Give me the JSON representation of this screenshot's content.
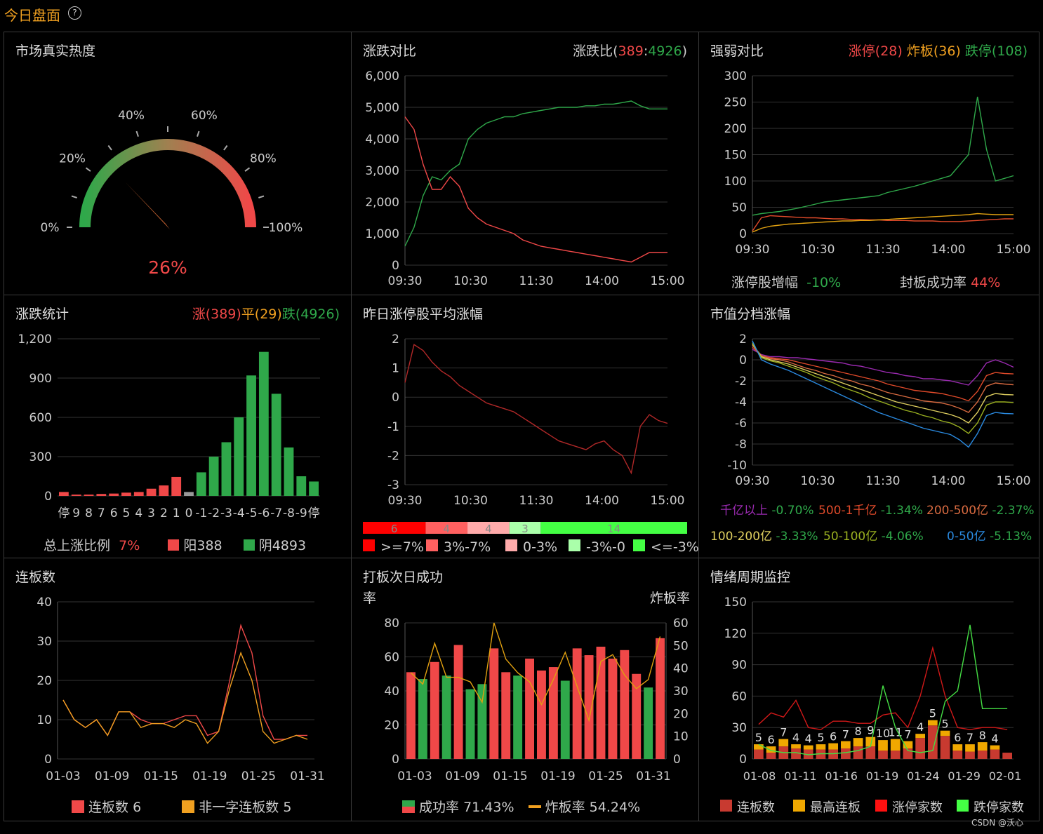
{
  "header": {
    "title": "今日盘面",
    "help_icon": "?"
  },
  "heat": {
    "title": "市场真实热度",
    "value": 26,
    "value_label": "26%",
    "ticks": [
      "0%",
      "20%",
      "40%",
      "60%",
      "80%",
      "100%"
    ]
  },
  "updown": {
    "title": "涨跌对比",
    "ratio_prefix": "涨跌比(",
    "ratio_up": "389",
    "ratio_sep": ":",
    "ratio_down": "4926",
    "ratio_suffix": ")",
    "chart_data": {
      "type": "line",
      "x_ticks": [
        "09:30",
        "10:30",
        "11:30",
        "14:00",
        "15:00"
      ],
      "y_ticks": [
        "6,000",
        "5,000",
        "4,000",
        "3,000",
        "2,000",
        "1,000",
        "0"
      ],
      "ylim": [
        0,
        6000
      ],
      "series": [
        {
          "color": "#2fa84a",
          "values": [
            600,
            1200,
            2200,
            2800,
            2700,
            3000,
            3200,
            4000,
            4300,
            4500,
            4600,
            4700,
            4700,
            4800,
            4850,
            4900,
            4950,
            5000,
            5000,
            5000,
            5050,
            5050,
            5100,
            5100,
            5150,
            5200,
            5050,
            4950,
            4950,
            4950
          ]
        },
        {
          "color": "#f04848",
          "values": [
            4700,
            4300,
            3200,
            2400,
            2400,
            2800,
            2500,
            1800,
            1500,
            1300,
            1200,
            1100,
            1000,
            800,
            700,
            600,
            550,
            500,
            450,
            400,
            350,
            300,
            250,
            200,
            150,
            100,
            250,
            400,
            400,
            400
          ]
        }
      ]
    }
  },
  "strength": {
    "title": "强弱对比",
    "r1": "涨停(28)",
    "r2": "炸板(36)",
    "r3": "跌停(108)",
    "chart_data": {
      "type": "line",
      "x_ticks": [
        "09:30",
        "10:30",
        "11:30",
        "14:00",
        "15:00"
      ],
      "y_ticks": [
        "300",
        "250",
        "200",
        "150",
        "100",
        "50",
        "0"
      ],
      "ylim": [
        0,
        300
      ],
      "series": [
        {
          "color": "#2fa84a",
          "values": [
            35,
            38,
            40,
            42,
            45,
            48,
            52,
            56,
            60,
            62,
            64,
            66,
            68,
            70,
            72,
            78,
            82,
            86,
            90,
            95,
            100,
            105,
            110,
            130,
            150,
            260,
            160,
            100,
            105,
            110
          ]
        },
        {
          "color": "#e04a2a",
          "values": [
            5,
            30,
            34,
            33,
            32,
            31,
            30,
            30,
            29,
            28,
            28,
            27,
            27,
            26,
            26,
            25,
            25,
            25,
            24,
            24,
            24,
            23,
            23,
            23,
            24,
            25,
            26,
            27,
            28,
            28
          ]
        },
        {
          "color": "#e0a010",
          "values": [
            3,
            10,
            14,
            16,
            18,
            19,
            20,
            21,
            22,
            23,
            24,
            24,
            25,
            25,
            26,
            27,
            28,
            29,
            30,
            31,
            32,
            33,
            34,
            35,
            36,
            38,
            37,
            36,
            36,
            36
          ]
        }
      ]
    },
    "stat1_label": "涨停股增幅",
    "stat1_value": "-10%",
    "stat2_label": "封板成功率",
    "stat2_value": "44%"
  },
  "stats": {
    "title": "涨跌统计",
    "rise": "涨(389)",
    "flat": "平(29)",
    "fall": "跌(4926)",
    "chart_data": {
      "type": "bar",
      "categories": [
        "停",
        "9",
        "8",
        "7",
        "6",
        "5",
        "4",
        "3",
        "2",
        "1",
        "0",
        "-1",
        "-2",
        "-3",
        "-4",
        "-5",
        "-6",
        "-7",
        "-8",
        "-9",
        "停"
      ],
      "values": [
        30,
        10,
        10,
        15,
        18,
        25,
        30,
        55,
        80,
        145,
        30,
        180,
        300,
        410,
        600,
        920,
        1100,
        780,
        370,
        150,
        110
      ],
      "colors": [
        "#f04848",
        "#f04848",
        "#f04848",
        "#f04848",
        "#f04848",
        "#f04848",
        "#f04848",
        "#f04848",
        "#f04848",
        "#f04848",
        "#999999",
        "#2fa84a",
        "#2fa84a",
        "#2fa84a",
        "#2fa84a",
        "#2fa84a",
        "#2fa84a",
        "#2fa84a",
        "#2fa84a",
        "#2fa84a",
        "#2fa84a"
      ],
      "y_ticks": [
        "1,200",
        "900",
        "600",
        "300",
        "0"
      ],
      "ylim": [
        0,
        1200
      ]
    },
    "ratio_label": "总上涨比例",
    "ratio_value": "7%",
    "yang": "阳388",
    "yin": "阴4893"
  },
  "yesterday": {
    "title": "昨日涨停股平均涨幅",
    "chart_data": {
      "type": "line",
      "x_ticks": [
        "09:30",
        "10:30",
        "11:30",
        "14:00",
        "15:00"
      ],
      "y_ticks": [
        "2",
        "1",
        "0",
        "-1",
        "-2",
        "-3"
      ],
      "ylim": [
        -3,
        2
      ],
      "series": [
        {
          "color": "#b02828",
          "values": [
            0.5,
            1.8,
            1.6,
            1.2,
            0.9,
            0.7,
            0.4,
            0.2,
            0.0,
            -0.2,
            -0.3,
            -0.4,
            -0.5,
            -0.7,
            -0.9,
            -1.1,
            -1.3,
            -1.5,
            -1.6,
            -1.7,
            -1.8,
            -1.6,
            -1.5,
            -1.8,
            -2.0,
            -2.6,
            -1.0,
            -0.6,
            -0.8,
            -0.9
          ]
        }
      ]
    },
    "dist": [
      {
        "n": "6",
        "color": "#ff0000",
        "w": 6
      },
      {
        "n": "4",
        "color": "#ff6060",
        "w": 4
      },
      {
        "n": "4",
        "color": "#ffaaaa",
        "w": 4
      },
      {
        "n": "3",
        "color": "#aaffaa",
        "w": 3
      },
      {
        "n": "14",
        "color": "#44ff44",
        "w": 14
      }
    ],
    "legend": [
      {
        "label": ">=7%",
        "color": "#ff0000"
      },
      {
        "label": "3%-7%",
        "color": "#ff6060"
      },
      {
        "label": "0-3%",
        "color": "#ffaaaa"
      },
      {
        "label": "-3%-0",
        "color": "#aaffaa"
      },
      {
        "label": "<=-3%",
        "color": "#44ff44"
      }
    ]
  },
  "mcap": {
    "title": "市值分档涨幅",
    "chart_data": {
      "type": "line",
      "x_ticks": [
        "09:30",
        "10:30",
        "11:30",
        "14:00",
        "15:00"
      ],
      "y_ticks": [
        "2",
        "0",
        "-2",
        "-4",
        "-6",
        "-8",
        "-10"
      ],
      "ylim": [
        -10,
        2
      ],
      "series": [
        {
          "name": "千亿以上",
          "color": "#9a2ab0",
          "values": [
            1.0,
            0.5,
            0.3,
            0.3,
            0.2,
            0.2,
            0.1,
            0.0,
            -0.1,
            -0.2,
            -0.3,
            -0.5,
            -0.6,
            -0.8,
            -1.0,
            -1.2,
            -1.3,
            -1.5,
            -1.6,
            -1.8,
            -1.8,
            -1.9,
            -2.0,
            -2.2,
            -2.4,
            -1.5,
            -0.3,
            0.0,
            -0.3,
            -0.7
          ]
        },
        {
          "name": "500-1千亿",
          "color": "#e04a2a",
          "values": [
            1.2,
            0.4,
            0.2,
            0.1,
            0.0,
            -0.2,
            -0.4,
            -0.6,
            -0.8,
            -1.0,
            -1.2,
            -1.4,
            -1.6,
            -1.8,
            -2.0,
            -2.3,
            -2.5,
            -2.7,
            -2.9,
            -3.0,
            -3.1,
            -3.2,
            -3.4,
            -3.6,
            -3.9,
            -3.0,
            -1.5,
            -1.2,
            -1.3,
            -1.34
          ]
        },
        {
          "name": "200-500亿",
          "color": "#d86a40",
          "values": [
            1.4,
            0.4,
            0.1,
            0.0,
            -0.2,
            -0.5,
            -0.8,
            -1.0,
            -1.3,
            -1.5,
            -1.8,
            -2.0,
            -2.3,
            -2.5,
            -2.8,
            -3.1,
            -3.3,
            -3.5,
            -3.7,
            -3.9,
            -4.0,
            -4.1,
            -4.3,
            -4.6,
            -5.0,
            -4.0,
            -2.5,
            -2.2,
            -2.3,
            -2.37
          ]
        },
        {
          "name": "100-200亿",
          "color": "#e0d060",
          "values": [
            1.5,
            0.3,
            0.0,
            -0.2,
            -0.4,
            -0.7,
            -1.0,
            -1.3,
            -1.6,
            -1.9,
            -2.2,
            -2.5,
            -2.8,
            -3.1,
            -3.4,
            -3.7,
            -4.0,
            -4.2,
            -4.4,
            -4.6,
            -4.8,
            -5.0,
            -5.2,
            -5.5,
            -6.0,
            -5.0,
            -3.5,
            -3.2,
            -3.3,
            -3.33
          ]
        },
        {
          "name": "50-100亿",
          "color": "#9ab020",
          "values": [
            1.6,
            0.2,
            -0.1,
            -0.3,
            -0.6,
            -0.9,
            -1.2,
            -1.6,
            -1.9,
            -2.2,
            -2.6,
            -2.9,
            -3.2,
            -3.6,
            -3.9,
            -4.2,
            -4.5,
            -4.8,
            -5.0,
            -5.3,
            -5.5,
            -5.8,
            -6.0,
            -6.4,
            -7.0,
            -6.0,
            -4.3,
            -4.0,
            -4.0,
            -4.06
          ]
        },
        {
          "name": "0-50亿",
          "color": "#2a8ae0",
          "values": [
            1.8,
            0.0,
            -0.4,
            -0.7,
            -1.0,
            -1.4,
            -1.8,
            -2.2,
            -2.6,
            -3.0,
            -3.4,
            -3.8,
            -4.2,
            -4.6,
            -5.0,
            -5.3,
            -5.6,
            -5.9,
            -6.2,
            -6.5,
            -6.7,
            -6.9,
            -7.1,
            -7.6,
            -8.3,
            -7.0,
            -5.3,
            -5.0,
            -5.1,
            -5.13
          ]
        }
      ]
    },
    "legend": [
      {
        "label": "千亿以上",
        "label_color": "#9a2ab0",
        "value": "-0.70%"
      },
      {
        "label": "500-1千亿",
        "label_color": "#e04a2a",
        "value": "-1.34%"
      },
      {
        "label": "200-500亿",
        "label_color": "#d86a40",
        "value": "-2.37%"
      },
      {
        "label": "100-200亿",
        "label_color": "#e0d060",
        "value": "-3.33%"
      },
      {
        "label": "50-100亿",
        "label_color": "#9ab020",
        "value": "-4.06%"
      },
      {
        "label": "0-50亿",
        "label_color": "#2a8ae0",
        "value": "-5.13%"
      }
    ]
  },
  "streak": {
    "title": "连板数",
    "chart_data": {
      "type": "line",
      "x_ticks": [
        "01-03",
        "01-09",
        "01-15",
        "01-19",
        "01-25",
        "01-31"
      ],
      "y_ticks": [
        "40",
        "30",
        "20",
        "10",
        "0"
      ],
      "ylim": [
        0,
        40
      ],
      "series": [
        {
          "name": "连板数",
          "color": "#f04848",
          "values": [
            15,
            10,
            8,
            10,
            6,
            12,
            12,
            10,
            9,
            9,
            10,
            11,
            11,
            6,
            7,
            20,
            34,
            27,
            11,
            5,
            5,
            6,
            6
          ]
        },
        {
          "name": "非一字连板数",
          "color": "#f0a020",
          "values": [
            15,
            10,
            8,
            10,
            6,
            12,
            12,
            8,
            9,
            9,
            8,
            10,
            9,
            4,
            7,
            18,
            27,
            20,
            7,
            4,
            5,
            6,
            5
          ]
        }
      ]
    },
    "legend1": "连板数 6",
    "legend2": "非一字连板数 5"
  },
  "next": {
    "title": "打板次日成功",
    "title2": "率",
    "right_label": "炸板率",
    "chart_data": {
      "type": "bar",
      "x_ticks": [
        "01-03",
        "01-09",
        "01-15",
        "01-19",
        "01-25",
        "01-31"
      ],
      "y_left_ticks": [
        "80",
        "60",
        "40",
        "20",
        "0"
      ],
      "ylim_left": [
        0,
        80
      ],
      "y_right_ticks": [
        "60",
        "50",
        "40",
        "30",
        "20",
        "10",
        "0"
      ],
      "ylim_right": [
        0,
        60
      ],
      "success": [
        51,
        47,
        57,
        49,
        67,
        41,
        44,
        65,
        51,
        49,
        59,
        52,
        54,
        46,
        65,
        61,
        66,
        59,
        64,
        50,
        42,
        71
      ],
      "success_colors": [
        "r",
        "g",
        "r",
        "g",
        "r",
        "g",
        "g",
        "r",
        "r",
        "g",
        "r",
        "r",
        "r",
        "g",
        "r",
        "r",
        "r",
        "r",
        "r",
        "r",
        "g",
        "r"
      ],
      "blast": [
        38,
        33,
        51,
        36,
        36,
        34,
        25,
        60,
        44,
        38,
        34,
        24,
        35,
        47,
        32,
        17,
        43,
        46,
        37,
        31,
        35,
        54
      ]
    },
    "legend1": "成功率 71.43%",
    "legend2": "炸板率 54.24%"
  },
  "cycle": {
    "title": "情绪周期监控",
    "chart_data": {
      "type": "bar",
      "x_ticks": [
        "01-08",
        "01-11",
        "01-16",
        "01-19",
        "01-24",
        "01-29",
        "02-01"
      ],
      "y_ticks": [
        "150",
        "120",
        "90",
        "60",
        "30",
        "0"
      ],
      "ylim": [
        0,
        150
      ],
      "streak": [
        9,
        6,
        12,
        10,
        9,
        9,
        9,
        10,
        12,
        12,
        8,
        8,
        10,
        20,
        32,
        22,
        8,
        7,
        8,
        9,
        6
      ],
      "highest": [
        5,
        6,
        7,
        4,
        4,
        5,
        6,
        7,
        8,
        9,
        10,
        11,
        7,
        4,
        5,
        5,
        6,
        7,
        8,
        4,
        0
      ],
      "top_labels": [
        "5",
        "6",
        "7",
        "4",
        "4",
        "5",
        "6",
        "7",
        "8",
        "9",
        "10",
        "11",
        "7",
        "4",
        "5",
        "5",
        "6",
        "7",
        "8",
        "4"
      ],
      "limit_up": [
        33,
        44,
        40,
        56,
        30,
        28,
        36,
        36,
        34,
        34,
        42,
        44,
        30,
        60,
        106,
        60,
        30,
        28,
        30,
        30,
        28
      ],
      "limit_down": [
        14,
        8,
        6,
        6,
        4,
        5,
        5,
        6,
        8,
        12,
        70,
        30,
        8,
        6,
        8,
        55,
        65,
        128,
        48,
        48,
        48
      ]
    },
    "legend": [
      "连板数",
      "最高连板",
      "涨停家数",
      "跌停家数"
    ]
  },
  "footer": "CSDN @沃心"
}
